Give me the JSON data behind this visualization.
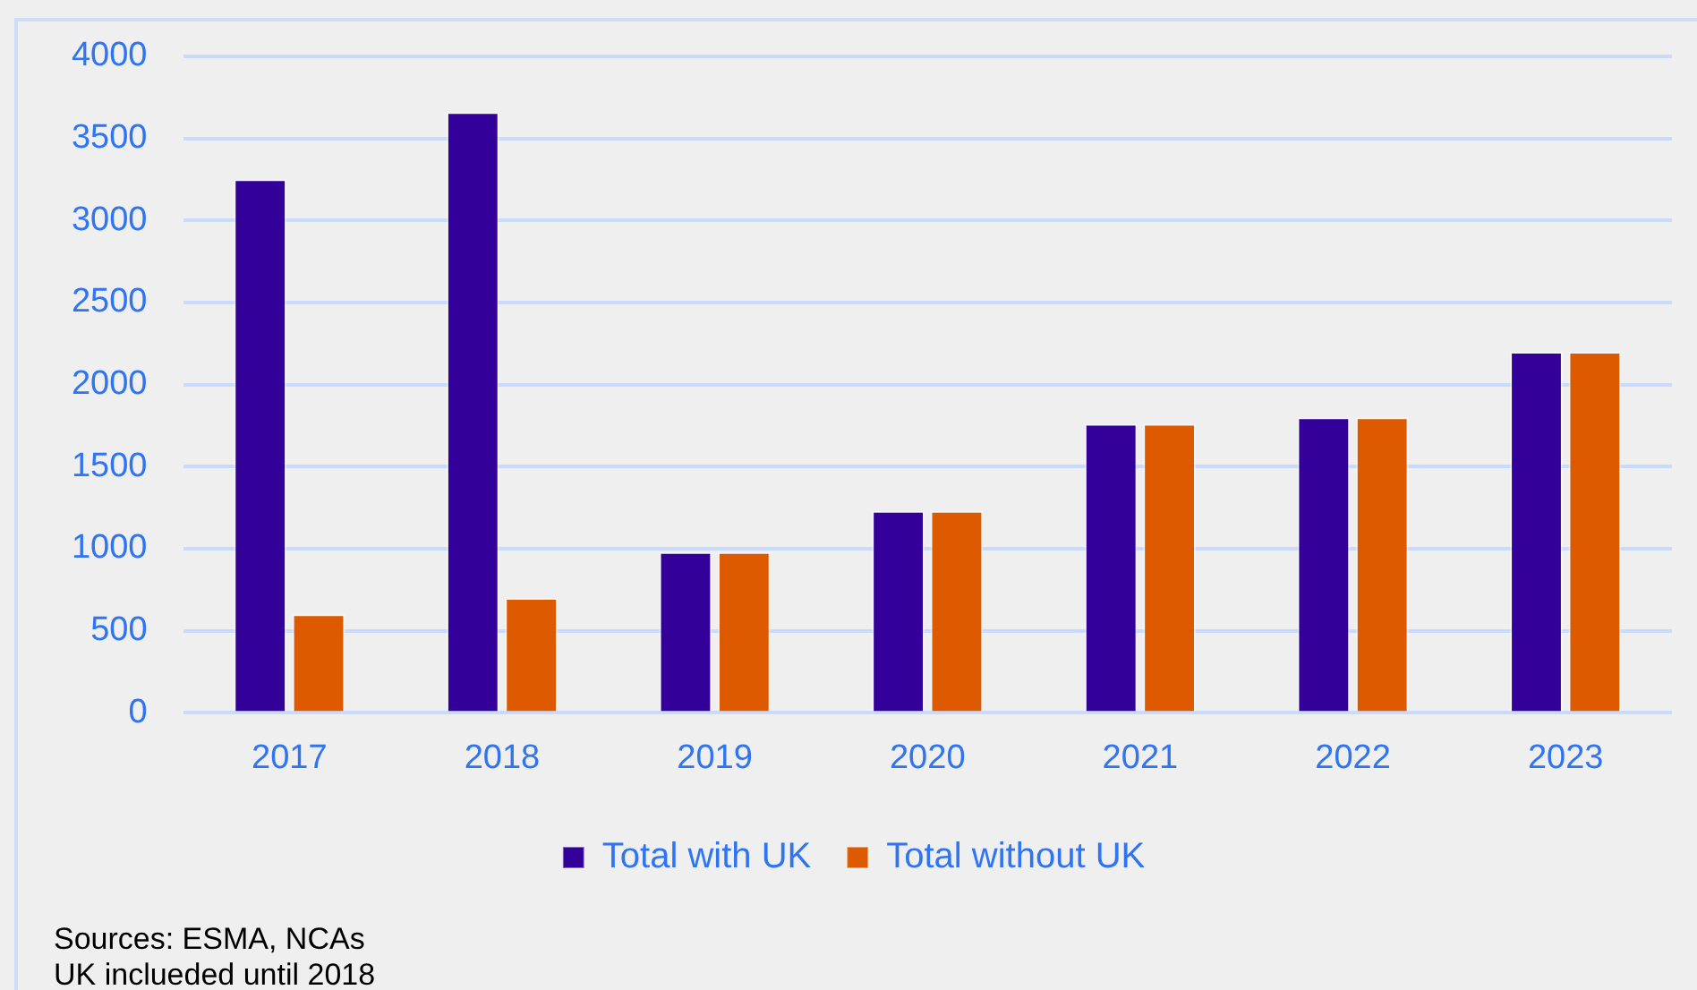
{
  "chart_data": {
    "type": "bar",
    "categories": [
      "2017",
      "2018",
      "2019",
      "2020",
      "2021",
      "2022",
      "2023"
    ],
    "series": [
      {
        "name": "Total with UK",
        "color": "#330099",
        "values": [
          3250,
          3660,
          980,
          1230,
          1760,
          1800,
          2200
        ]
      },
      {
        "name": "Total without UK",
        "color": "#dd5a00",
        "values": [
          600,
          700,
          980,
          1230,
          1760,
          1800,
          2200
        ]
      }
    ],
    "ylim": [
      0,
      4000
    ],
    "yticks": [
      0,
      500,
      1000,
      1500,
      2000,
      2500,
      3000,
      3500,
      4000
    ],
    "grid": "y",
    "legend": "bottom",
    "annotations": [
      "Sources: ESMA, NCAs",
      "UK inclueded until 2018"
    ]
  }
}
